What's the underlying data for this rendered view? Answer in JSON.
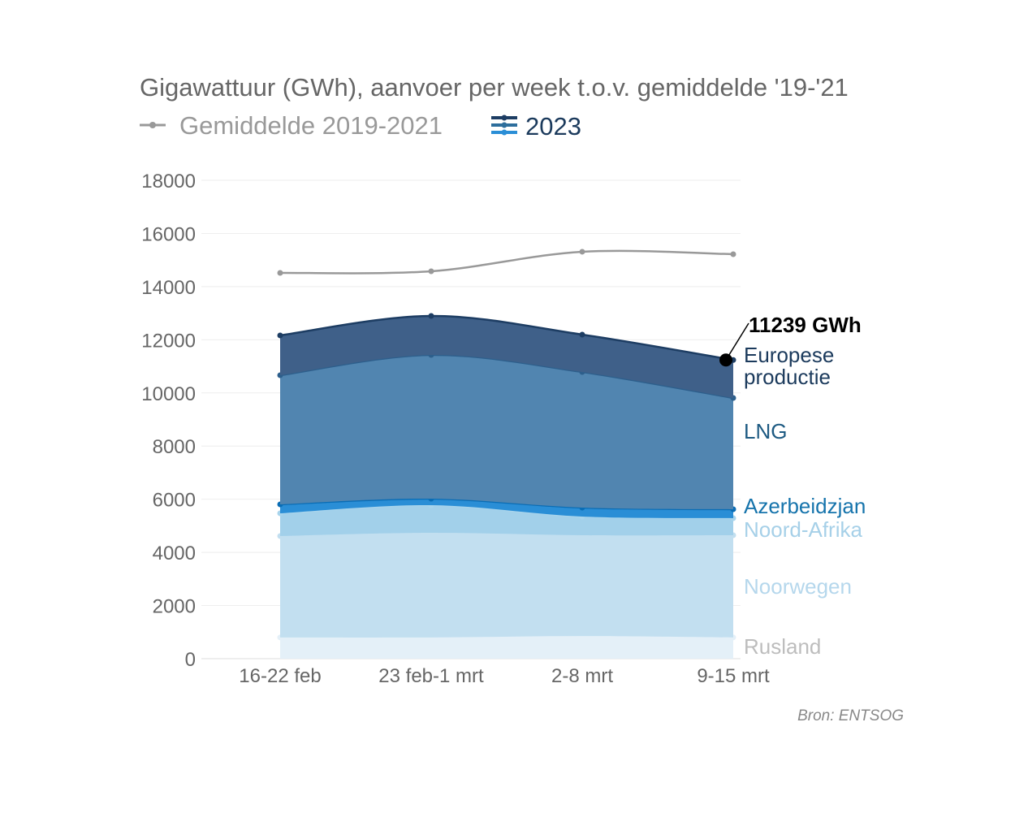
{
  "chart_data": {
    "type": "area",
    "stacked": true,
    "title": "Gigawattuur (GWh), aanvoer per week t.o.v. gemiddelde '19-'21",
    "categories": [
      "16-22 feb",
      "23 feb-1 mrt",
      "2-8 mrt",
      "9-15 mrt"
    ],
    "ylim": [
      0,
      18000
    ],
    "yticks": [
      0,
      2000,
      4000,
      6000,
      8000,
      10000,
      12000,
      14000,
      16000,
      18000
    ],
    "legend": [
      {
        "label": "Gemiddelde 2019-2021",
        "color": "#999999"
      },
      {
        "label": "2023",
        "color": "#1f5f8f"
      }
    ],
    "series": [
      {
        "name": "Rusland",
        "values": [
          800,
          800,
          850,
          800
        ],
        "fill": "#e4f0f8",
        "line": "#e4f0f8",
        "label_color": "#bdbdbd"
      },
      {
        "name": "Noorwegen",
        "values": [
          3815,
          3937,
          3795,
          3845
        ],
        "fill": "#c2dff0",
        "line": "#c2dff0",
        "label_color": "#b5d7ec"
      },
      {
        "name": "Noord-Afrika",
        "values": [
          855,
          1039,
          703,
          642
        ],
        "fill": "#a2d0ea",
        "line": "#a8d4ec",
        "label_color": "#a6d0e8"
      },
      {
        "name": "Azerbeidzjan",
        "values": [
          337,
          244,
          337,
          336
        ],
        "fill": "#2a8ed6",
        "line": "#0a6db5",
        "label_color": "#1674ac"
      },
      {
        "name": "LNG",
        "values": [
          4859,
          5410,
          5103,
          4187
        ],
        "fill": "#5185b0",
        "line": "#2d5f8c",
        "label_color": "#1d5a82"
      },
      {
        "name": "Europese productie",
        "label_lines": [
          "Europese",
          "productie"
        ],
        "values": [
          1498,
          1467,
          1406,
          1429
        ],
        "fill": "#3f6089",
        "line": "#1d3d63",
        "label_color": "#1b3a5c"
      }
    ],
    "average": {
      "name": "Gemiddelde 2019-2021",
      "values": [
        14517,
        14578,
        15312,
        15220
      ],
      "color": "#999999"
    },
    "annotation": {
      "text": "11239 GWh",
      "category": "9-15 mrt",
      "value": 11239
    },
    "source": "Bron: ENTSOG"
  }
}
